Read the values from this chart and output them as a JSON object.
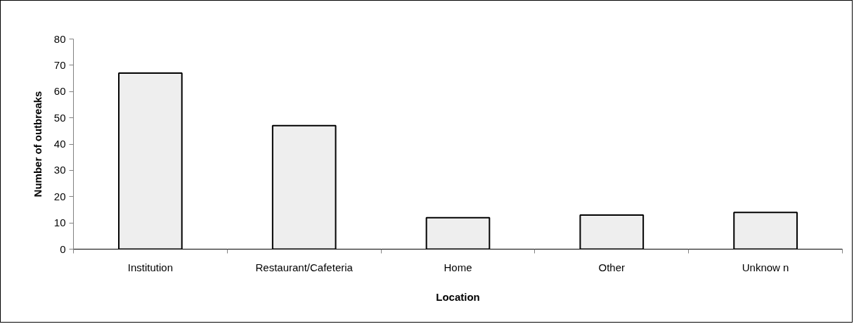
{
  "chart_data": {
    "type": "bar",
    "xlabel": "Location",
    "ylabel": "Number of outbreaks",
    "categories": [
      "Institution",
      "Restaurant/Cafeteria",
      "Home",
      "Other",
      "Unknow n"
    ],
    "values": [
      67,
      47,
      12,
      13,
      14
    ],
    "color": "#eeeeee",
    "ylim": [
      0,
      80
    ],
    "yticks": [
      0,
      10,
      20,
      30,
      40,
      50,
      60,
      70,
      80
    ],
    "grid": false
  }
}
